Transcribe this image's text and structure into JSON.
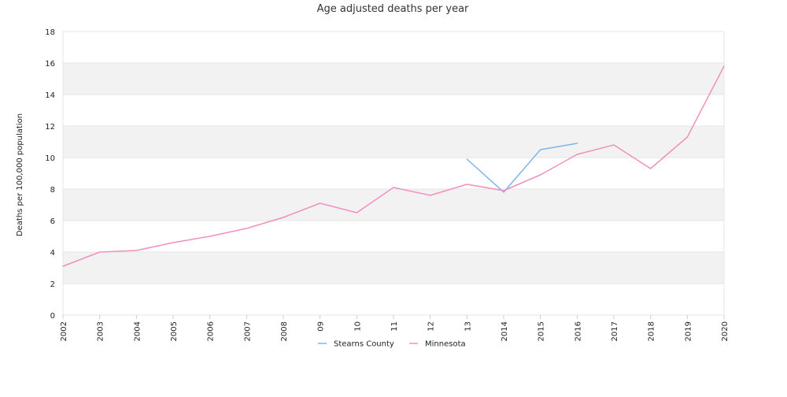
{
  "chart_data": {
    "type": "line",
    "title": "Age adjusted deaths per year",
    "xlabel": "",
    "ylabel": "Deaths per 100,000 population",
    "categories": [
      "2002",
      "2003",
      "2004",
      "2005",
      "2006",
      "2007",
      "2008",
      "09",
      "10",
      "11",
      "12",
      "13",
      "2014",
      "2015",
      "2016",
      "2017",
      "2018",
      "2019",
      "2020"
    ],
    "ylim": [
      0,
      18
    ],
    "yticks": [
      0,
      2,
      4,
      6,
      8,
      10,
      12,
      14,
      16,
      18
    ],
    "grid": true,
    "legend": "bottom",
    "series": [
      {
        "name": "Stearns County",
        "color": "#7cb5ec",
        "values": [
          null,
          null,
          null,
          null,
          null,
          null,
          null,
          null,
          null,
          null,
          null,
          9.9,
          7.8,
          10.5,
          10.9,
          null,
          null,
          null,
          null
        ]
      },
      {
        "name": "Minnesota",
        "color": "#f28fbf",
        "values": [
          3.1,
          4.0,
          4.1,
          4.6,
          5.0,
          5.5,
          6.2,
          7.1,
          6.5,
          8.1,
          7.6,
          8.3,
          7.9,
          8.9,
          10.2,
          10.8,
          9.3,
          11.3,
          15.8
        ]
      }
    ],
    "band_color": "#f2f2f2",
    "grid_color": "#e6e6e6"
  }
}
